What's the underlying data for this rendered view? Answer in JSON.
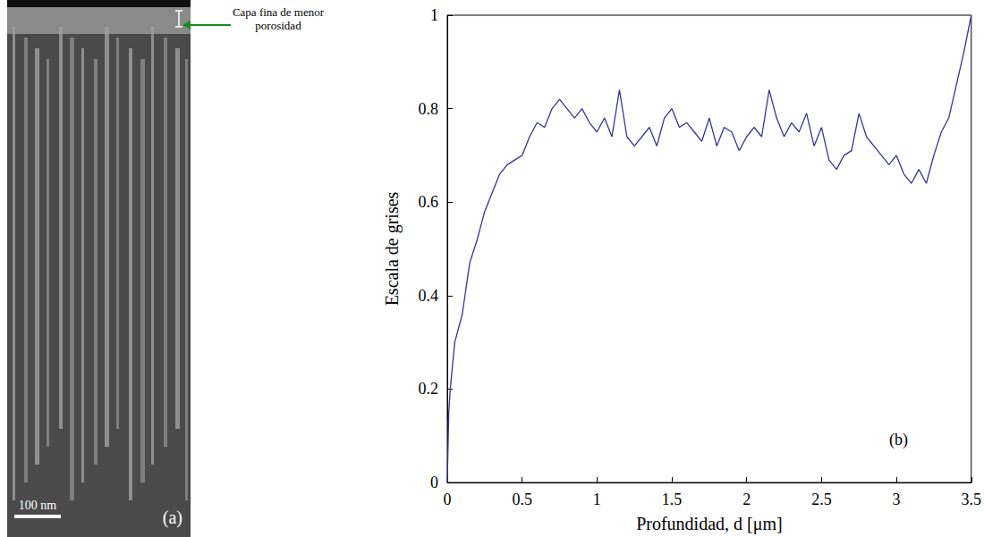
{
  "image_panel": {
    "label": "(a)",
    "scale_bar": "100 nm",
    "annotation": "Capa fina de menor porosidad"
  },
  "chart_data": {
    "type": "line",
    "panel_label": "(b)",
    "xlabel": "Profundidad, d [μm]",
    "ylabel": "Escala de grises",
    "x": [
      0,
      0.01,
      0.02,
      0.05,
      0.1,
      0.15,
      0.2,
      0.25,
      0.3,
      0.35,
      0.4,
      0.45,
      0.5,
      0.55,
      0.6,
      0.65,
      0.7,
      0.75,
      0.8,
      0.85,
      0.9,
      0.95,
      1.0,
      1.05,
      1.1,
      1.15,
      1.2,
      1.25,
      1.3,
      1.35,
      1.4,
      1.45,
      1.5,
      1.55,
      1.6,
      1.65,
      1.7,
      1.75,
      1.8,
      1.85,
      1.9,
      1.95,
      2.0,
      2.05,
      2.1,
      2.15,
      2.2,
      2.25,
      2.3,
      2.35,
      2.4,
      2.45,
      2.5,
      2.55,
      2.6,
      2.65,
      2.7,
      2.75,
      2.8,
      2.85,
      2.9,
      2.95,
      3.0,
      3.05,
      3.1,
      3.15,
      3.2,
      3.25,
      3.3,
      3.35,
      3.4,
      3.45,
      3.5
    ],
    "series": [
      {
        "color": "#34349a",
        "values": [
          0,
          0.15,
          0.2,
          0.3,
          0.36,
          0.47,
          0.52,
          0.58,
          0.62,
          0.66,
          0.68,
          0.69,
          0.7,
          0.74,
          0.77,
          0.76,
          0.8,
          0.82,
          0.8,
          0.78,
          0.8,
          0.77,
          0.75,
          0.78,
          0.74,
          0.84,
          0.74,
          0.72,
          0.74,
          0.76,
          0.72,
          0.78,
          0.8,
          0.76,
          0.77,
          0.75,
          0.73,
          0.78,
          0.72,
          0.76,
          0.75,
          0.71,
          0.74,
          0.76,
          0.74,
          0.84,
          0.78,
          0.74,
          0.77,
          0.75,
          0.79,
          0.72,
          0.76,
          0.69,
          0.67,
          0.7,
          0.71,
          0.79,
          0.74,
          0.72,
          0.7,
          0.68,
          0.7,
          0.66,
          0.64,
          0.67,
          0.64,
          0.7,
          0.75,
          0.78,
          0.85,
          0.92,
          1.0
        ]
      }
    ],
    "xlim": [
      0,
      3.5
    ],
    "ylim": [
      0,
      1
    ],
    "xticks": [
      0,
      0.5,
      1,
      1.5,
      2,
      2.5,
      3,
      3.5
    ],
    "yticks": [
      0,
      0.2,
      0.4,
      0.6,
      0.8,
      1
    ],
    "grid": false
  }
}
